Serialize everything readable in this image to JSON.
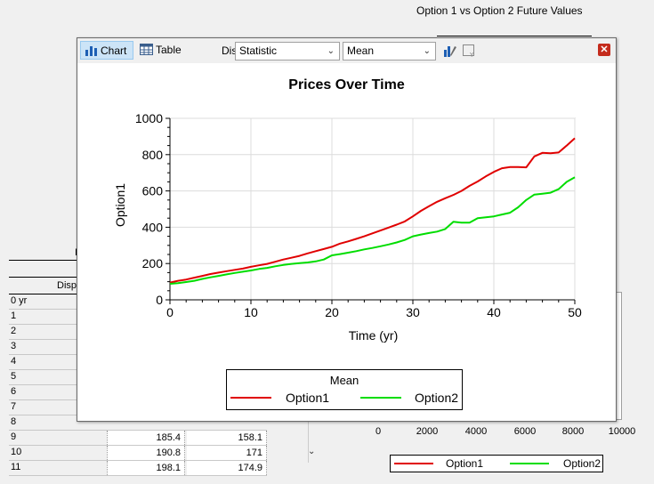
{
  "background": {
    "title": "Option 1 vs Option 2 Future Values",
    "x_ticks": [
      "0",
      "2000",
      "4000",
      "6000",
      "8000",
      "10000"
    ],
    "legend": [
      {
        "name": "Option1",
        "color": "#e00000"
      },
      {
        "name": "Option2",
        "color": "#00dd00"
      }
    ],
    "table": {
      "header_partial": "I",
      "display_partial": "Disp",
      "rows": [
        {
          "label": "0 yr",
          "c1": "",
          "c2": ""
        },
        {
          "label": "1",
          "c1": "",
          "c2": ""
        },
        {
          "label": "2",
          "c1": "",
          "c2": ""
        },
        {
          "label": "3",
          "c1": "",
          "c2": ""
        },
        {
          "label": "4",
          "c1": "",
          "c2": ""
        },
        {
          "label": "5",
          "c1": "",
          "c2": ""
        },
        {
          "label": "6",
          "c1": "",
          "c2": ""
        },
        {
          "label": "7",
          "c1": "",
          "c2": ""
        },
        {
          "label": "8",
          "c1": "",
          "c2": ""
        },
        {
          "label": "9",
          "c1": "185.4",
          "c2": "158.1"
        },
        {
          "label": "10",
          "c1": "190.8",
          "c2": "171"
        },
        {
          "label": "11",
          "c1": "198.1",
          "c2": "174.9"
        }
      ]
    }
  },
  "window": {
    "toolbar": {
      "chart_label": "Chart",
      "table_label": "Table",
      "display_label": "Display:",
      "display_value": "Statistic",
      "stat_value": "Mean"
    }
  },
  "chart_data": {
    "type": "line",
    "title": "Prices Over Time",
    "xlabel": "Time (yr)",
    "ylabel": "Option1",
    "xlim": [
      0,
      50
    ],
    "ylim": [
      0,
      1000
    ],
    "x_ticks": [
      0,
      10,
      20,
      30,
      40,
      50
    ],
    "y_ticks": [
      0,
      200,
      400,
      600,
      800,
      1000
    ],
    "grid": true,
    "legend_title": "Mean",
    "legend_position": "bottom",
    "x": [
      0,
      1,
      2,
      3,
      4,
      5,
      6,
      7,
      8,
      9,
      10,
      11,
      12,
      13,
      14,
      15,
      16,
      17,
      18,
      19,
      20,
      21,
      22,
      23,
      24,
      25,
      26,
      27,
      28,
      29,
      30,
      31,
      32,
      33,
      34,
      35,
      36,
      37,
      38,
      39,
      40,
      41,
      42,
      43,
      44,
      45,
      46,
      47,
      48,
      49,
      50
    ],
    "series": [
      {
        "name": "Option1",
        "color": "#e00000",
        "values": [
          95,
          105,
          112,
          122,
          132,
          142,
          150,
          158,
          165,
          172,
          182,
          190,
          198,
          210,
          222,
          232,
          242,
          256,
          268,
          280,
          292,
          310,
          322,
          336,
          350,
          366,
          382,
          398,
          414,
          432,
          460,
          490,
          516,
          540,
          560,
          578,
          600,
          628,
          652,
          680,
          705,
          725,
          732,
          732,
          730,
          790,
          810,
          808,
          812,
          850,
          890
        ]
      },
      {
        "name": "Option2",
        "color": "#00dd00",
        "values": [
          88,
          92,
          98,
          105,
          115,
          124,
          132,
          140,
          148,
          155,
          162,
          170,
          176,
          185,
          192,
          198,
          202,
          206,
          212,
          222,
          245,
          252,
          260,
          268,
          278,
          286,
          295,
          305,
          316,
          330,
          350,
          360,
          368,
          376,
          390,
          430,
          425,
          425,
          450,
          455,
          460,
          470,
          480,
          510,
          550,
          580,
          585,
          590,
          610,
          650,
          675
        ]
      }
    ]
  }
}
